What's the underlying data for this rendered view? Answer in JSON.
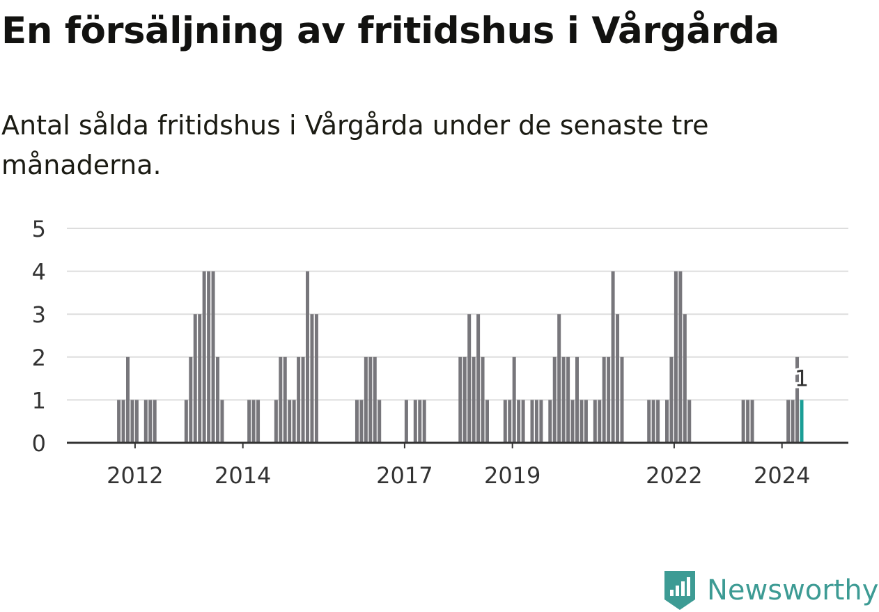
{
  "title": "En försäljning av fritidshus i Vårgårda",
  "subtitle": "Antal sålda fritidshus i Vårgårda under de senaste tre månaderna.",
  "brand": {
    "name": "Newsworthy",
    "icon": "newsworthy-logo-icon",
    "color": "#3d9b94"
  },
  "colors": {
    "bar": "#77767b",
    "highlight": "#1a9e96",
    "grid": "#dddddd",
    "baseline": "#333333"
  },
  "chart_data": {
    "type": "bar",
    "title": "En försäljning av fritidshus i Vårgårda",
    "subtitle": "Antal sålda fritidshus i Vårgårda under de senaste tre månaderna.",
    "xlabel": "",
    "ylabel": "",
    "ylim": [
      0,
      5
    ],
    "yticks": [
      0,
      1,
      2,
      3,
      4,
      5
    ],
    "grid": true,
    "x_tick_labels": [
      "2012",
      "2014",
      "2017",
      "2019",
      "2022",
      "2024"
    ],
    "x_start": "2011-01",
    "x_end": "2025-06",
    "highlight": {
      "period": "2024-11",
      "value": 1,
      "label": "1"
    },
    "series": [
      {
        "values": [
          [
            "2012-03",
            1
          ],
          [
            "2012-04",
            1
          ],
          [
            "2012-05",
            2
          ],
          [
            "2012-06",
            1
          ],
          [
            "2012-07",
            1
          ],
          [
            "2012-09",
            1
          ],
          [
            "2012-10",
            1
          ],
          [
            "2012-11",
            1
          ],
          [
            "2013-06",
            1
          ],
          [
            "2013-07",
            2
          ],
          [
            "2013-08",
            3
          ],
          [
            "2013-09",
            3
          ],
          [
            "2013-10",
            4
          ],
          [
            "2013-11",
            4
          ],
          [
            "2013-12",
            4
          ],
          [
            "2014-01",
            2
          ],
          [
            "2014-02",
            1
          ],
          [
            "2014-08",
            1
          ],
          [
            "2014-09",
            1
          ],
          [
            "2014-10",
            1
          ],
          [
            "2015-02",
            1
          ],
          [
            "2015-03",
            2
          ],
          [
            "2015-04",
            2
          ],
          [
            "2015-05",
            1
          ],
          [
            "2015-06",
            1
          ],
          [
            "2015-07",
            2
          ],
          [
            "2015-08",
            2
          ],
          [
            "2015-09",
            4
          ],
          [
            "2015-10",
            3
          ],
          [
            "2015-11",
            3
          ],
          [
            "2016-08",
            1
          ],
          [
            "2016-09",
            1
          ],
          [
            "2016-10",
            2
          ],
          [
            "2016-11",
            2
          ],
          [
            "2016-12",
            2
          ],
          [
            "2017-01",
            1
          ],
          [
            "2017-07",
            1
          ],
          [
            "2017-09",
            1
          ],
          [
            "2017-10",
            1
          ],
          [
            "2017-11",
            1
          ],
          [
            "2018-07",
            2
          ],
          [
            "2018-08",
            2
          ],
          [
            "2018-09",
            3
          ],
          [
            "2018-10",
            2
          ],
          [
            "2018-11",
            3
          ],
          [
            "2018-12",
            2
          ],
          [
            "2019-01",
            1
          ],
          [
            "2019-05",
            1
          ],
          [
            "2019-06",
            1
          ],
          [
            "2019-07",
            2
          ],
          [
            "2019-08",
            1
          ],
          [
            "2019-09",
            1
          ],
          [
            "2019-11",
            1
          ],
          [
            "2019-12",
            1
          ],
          [
            "2020-01",
            1
          ],
          [
            "2020-03",
            1
          ],
          [
            "2020-04",
            2
          ],
          [
            "2020-05",
            3
          ],
          [
            "2020-06",
            2
          ],
          [
            "2020-07",
            2
          ],
          [
            "2020-08",
            1
          ],
          [
            "2020-09",
            2
          ],
          [
            "2020-10",
            1
          ],
          [
            "2020-11",
            1
          ],
          [
            "2021-01",
            1
          ],
          [
            "2021-02",
            1
          ],
          [
            "2021-03",
            2
          ],
          [
            "2021-04",
            2
          ],
          [
            "2021-05",
            4
          ],
          [
            "2021-06",
            3
          ],
          [
            "2021-07",
            2
          ],
          [
            "2022-01",
            1
          ],
          [
            "2022-02",
            1
          ],
          [
            "2022-03",
            1
          ],
          [
            "2022-05",
            1
          ],
          [
            "2022-06",
            2
          ],
          [
            "2022-07",
            4
          ],
          [
            "2022-08",
            4
          ],
          [
            "2022-09",
            3
          ],
          [
            "2022-10",
            1
          ],
          [
            "2023-10",
            1
          ],
          [
            "2023-11",
            1
          ],
          [
            "2023-12",
            1
          ],
          [
            "2024-08",
            1
          ],
          [
            "2024-09",
            1
          ],
          [
            "2024-10",
            2
          ],
          [
            "2024-11",
            1
          ]
        ]
      }
    ]
  }
}
